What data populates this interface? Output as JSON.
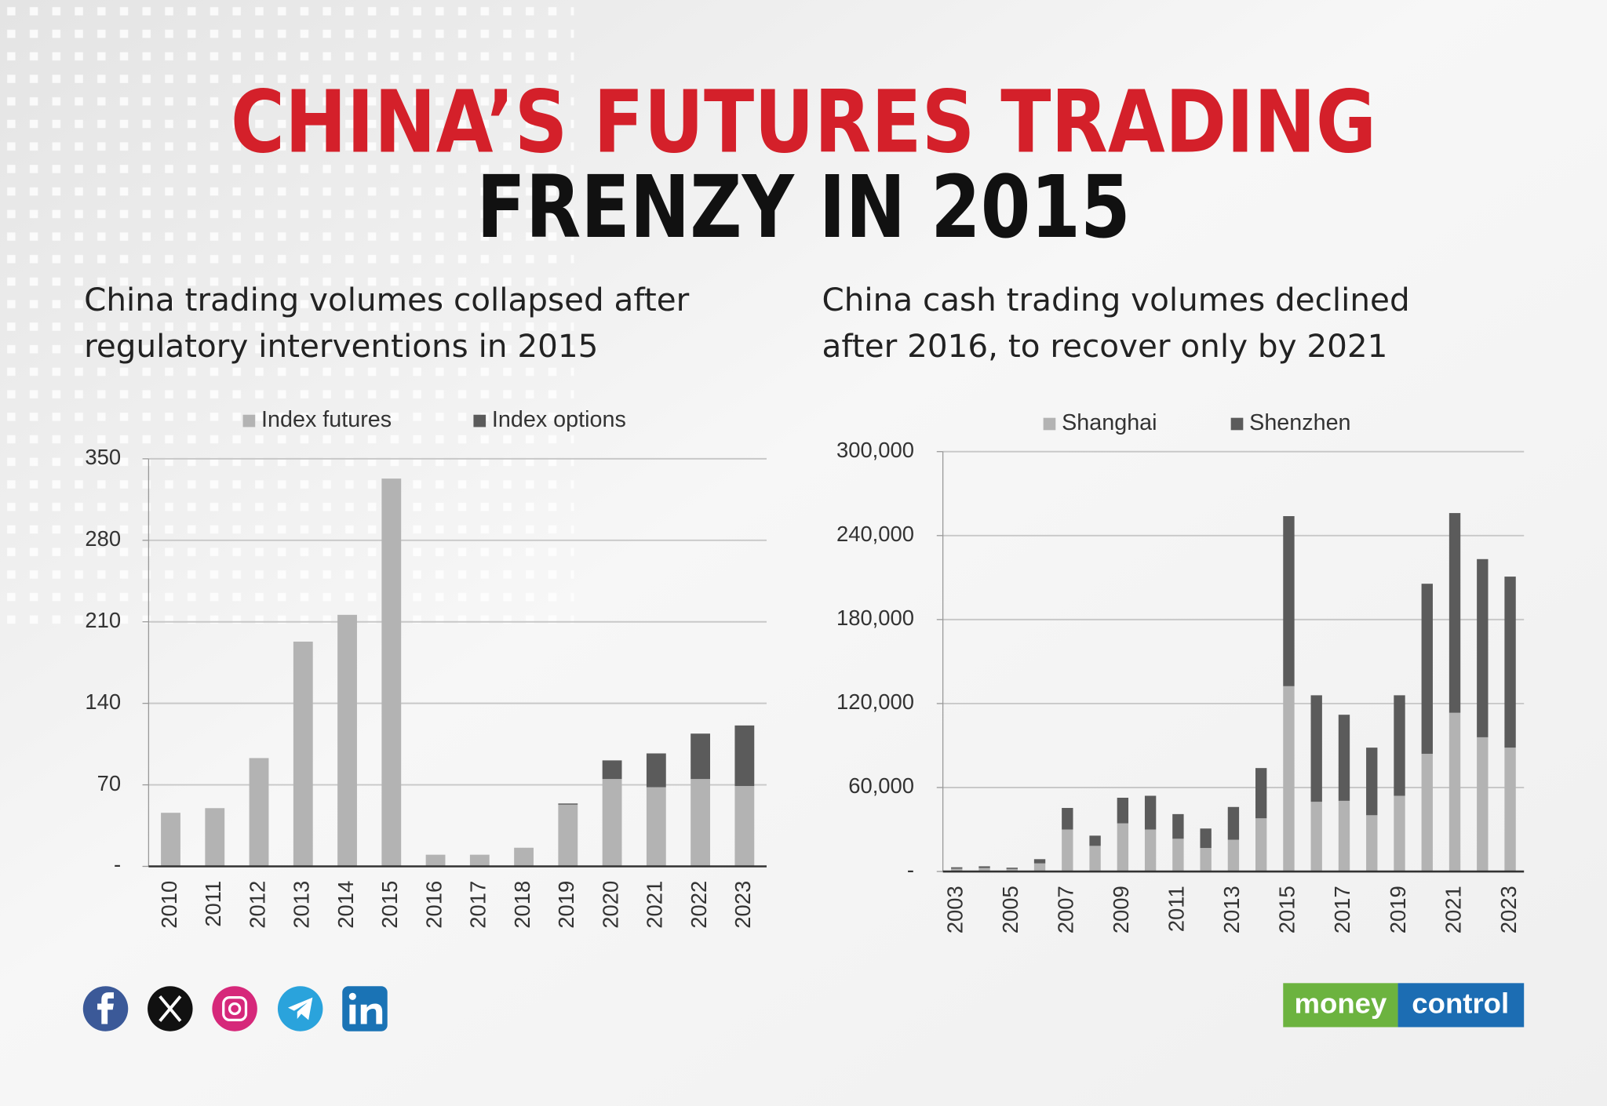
{
  "header": {
    "title": [
      "CHINA’S FUTURES TRADING",
      "FRENZY IN 2015"
    ]
  },
  "chart_data": [
    {
      "type": "bar",
      "stacked": true,
      "title": [
        "China trading volumes collapsed after",
        "regulatory interventions in 2015"
      ],
      "categories": [
        "2010",
        "2011",
        "2012",
        "2013",
        "2014",
        "2015",
        "2016",
        "2017",
        "2018",
        "2019",
        "2020",
        "2021",
        "2022",
        "2023"
      ],
      "series": [
        {
          "name": "Index futures",
          "color": "#b3b3b3",
          "values": [
            46,
            50,
            93,
            193,
            216,
            333,
            10,
            10,
            16,
            53,
            75,
            68,
            75,
            69
          ]
        },
        {
          "name": "Index options",
          "color": "#5b5b5b",
          "values": [
            0,
            0,
            0,
            0,
            0,
            0,
            0,
            0,
            0,
            1,
            16,
            29,
            39,
            52
          ]
        }
      ],
      "ylim": [
        0,
        350
      ],
      "yticks": [
        {
          "value": 0,
          "label": "-"
        },
        70,
        140,
        210,
        280,
        350
      ],
      "grid": true,
      "legend": "top"
    },
    {
      "type": "bar",
      "stacked": true,
      "title": [
        "China cash trading volumes declined",
        "after 2016, to recover only by 2021"
      ],
      "categories": [
        "2003",
        null,
        "2005",
        null,
        "2007",
        null,
        "2009",
        null,
        "2011",
        null,
        "2013",
        null,
        "2015",
        null,
        "2017",
        null,
        "2019",
        null,
        "2021",
        null,
        "2023"
      ],
      "series": [
        {
          "name": "Shanghai",
          "color": "#b3b3b3",
          "values": [
            2000,
            2500,
            1800,
            5800,
            30000,
            18300,
            34400,
            30000,
            23400,
            16800,
            22700,
            38000,
            132400,
            49800,
            50500,
            40200,
            54100,
            84100,
            113400,
            95900,
            88500
          ]
        },
        {
          "name": "Shenzhen",
          "color": "#5b5b5b",
          "values": [
            1000,
            1200,
            900,
            3000,
            15400,
            7300,
            18300,
            24100,
            17600,
            13900,
            23400,
            35900,
            121500,
            76100,
            61500,
            48300,
            71800,
            121500,
            142700,
            127300,
            122200
          ]
        }
      ],
      "ylim": [
        0,
        300000
      ],
      "yticks": [
        {
          "value": 0,
          "label": "-"
        },
        {
          "value": 60000,
          "label": "60,000"
        },
        {
          "value": 120000,
          "label": "120,000"
        },
        {
          "value": 180000,
          "label": "180,000"
        },
        {
          "value": 240000,
          "label": "240,000"
        },
        {
          "value": 300000,
          "label": "300,000"
        }
      ],
      "grid": true,
      "legend": "top"
    }
  ],
  "footer": {
    "brand": [
      "money",
      "control"
    ]
  }
}
